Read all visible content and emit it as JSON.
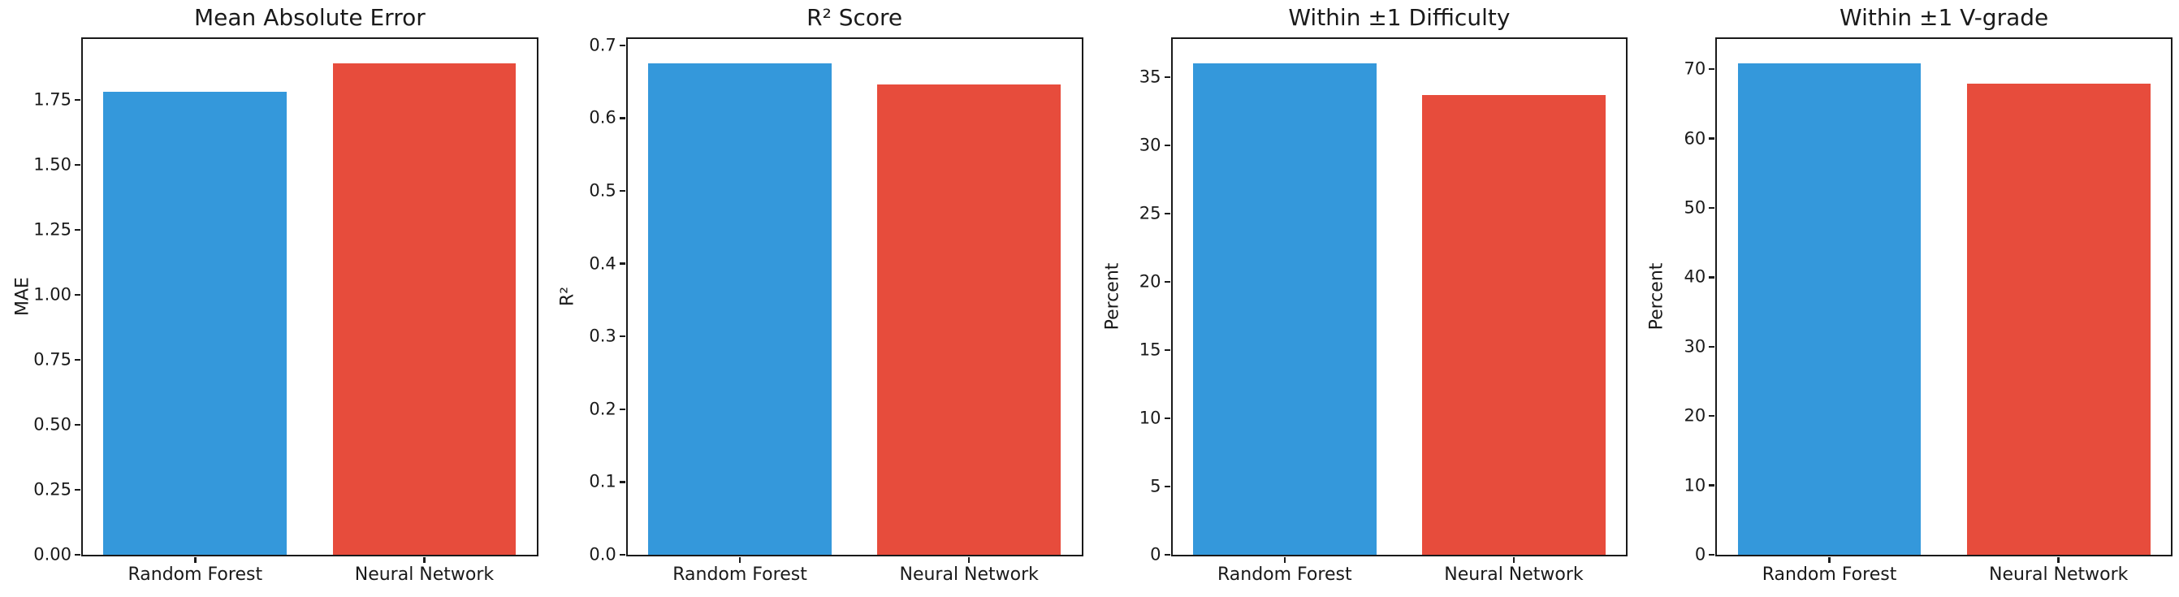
{
  "figure": {
    "background": "#ffffff",
    "axis_color": "#1a1a1a",
    "series_colors": {
      "random_forest": "#3498db",
      "neural_network": "#e74c3c"
    }
  },
  "chart_data": [
    {
      "type": "bar",
      "title": "Mean Absolute Error",
      "ylabel": "MAE",
      "xlabel": "",
      "categories": [
        "Random Forest",
        "Neural Network"
      ],
      "values": [
        1.78,
        1.89
      ],
      "bar_colors": [
        "#3498db",
        "#e74c3c"
      ],
      "yticks": [
        "0.00",
        "0.25",
        "0.50",
        "0.75",
        "1.00",
        "1.25",
        "1.50",
        "1.75"
      ],
      "ylim": [
        0,
        1.9845
      ],
      "grid": false,
      "legend_position": "none"
    },
    {
      "type": "bar",
      "title": "R² Score",
      "ylabel": "R²",
      "xlabel": "",
      "categories": [
        "Random Forest",
        "Neural Network"
      ],
      "values": [
        0.675,
        0.646
      ],
      "bar_colors": [
        "#3498db",
        "#e74c3c"
      ],
      "yticks": [
        "0.0",
        "0.1",
        "0.2",
        "0.3",
        "0.4",
        "0.5",
        "0.6",
        "0.7"
      ],
      "ylim": [
        0,
        0.70875
      ],
      "grid": false,
      "legend_position": "none"
    },
    {
      "type": "bar",
      "title": "Within ±1 Difficulty",
      "ylabel": "Percent",
      "xlabel": "",
      "categories": [
        "Random Forest",
        "Neural Network"
      ],
      "values": [
        36.0,
        33.7
      ],
      "bar_colors": [
        "#3498db",
        "#e74c3c"
      ],
      "yticks": [
        "0",
        "5",
        "10",
        "15",
        "20",
        "25",
        "30",
        "35"
      ],
      "ylim": [
        0,
        37.8
      ],
      "grid": false,
      "legend_position": "none"
    },
    {
      "type": "bar",
      "title": "Within ±1 V-grade",
      "ylabel": "Percent",
      "xlabel": "",
      "categories": [
        "Random Forest",
        "Neural Network"
      ],
      "values": [
        70.8,
        67.9
      ],
      "bar_colors": [
        "#3498db",
        "#e74c3c"
      ],
      "yticks": [
        "0",
        "10",
        "20",
        "30",
        "40",
        "50",
        "60",
        "70"
      ],
      "ylim": [
        0,
        74.34
      ],
      "grid": false,
      "legend_position": "none"
    }
  ]
}
